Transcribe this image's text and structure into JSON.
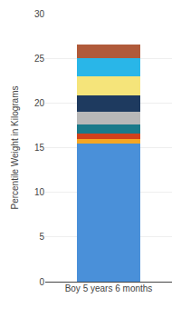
{
  "chart_data": {
    "type": "bar",
    "stacked": true,
    "categories": [
      "Boy 5 years 6 months"
    ],
    "series": [
      {
        "color": "#4A90D9",
        "values": [
          15.5
        ]
      },
      {
        "color": "#F5A623",
        "values": [
          0.5
        ]
      },
      {
        "color": "#D0411B",
        "values": [
          0.6
        ]
      },
      {
        "color": "#1A7A8A",
        "values": [
          1.0
        ]
      },
      {
        "color": "#B8B8B8",
        "values": [
          1.4
        ]
      },
      {
        "color": "#1E3A5F",
        "values": [
          1.8
        ]
      },
      {
        "color": "#F5E47A",
        "values": [
          2.2
        ]
      },
      {
        "color": "#29B6E8",
        "values": [
          2.0
        ]
      },
      {
        "color": "#B05A3A",
        "values": [
          1.5
        ]
      }
    ],
    "ylabel": "Percentile Weight in Kilograms",
    "ylim": [
      0,
      30
    ],
    "yticks": [
      0,
      5,
      10,
      15,
      20,
      25,
      30
    ],
    "grid": true
  }
}
